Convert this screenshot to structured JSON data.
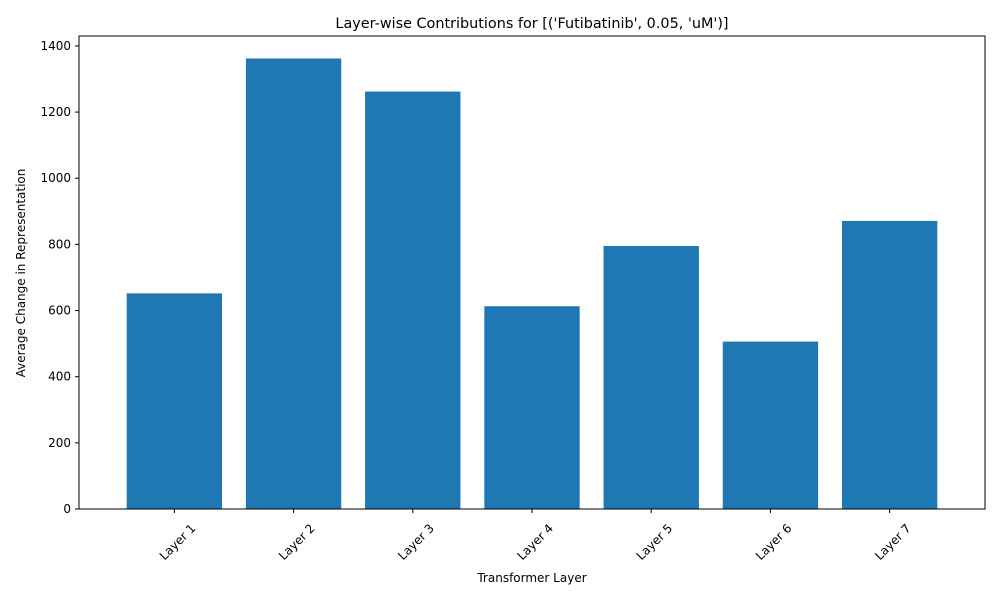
{
  "chart_data": {
    "type": "bar",
    "title": "Layer-wise Contributions for [('Futibatinib', 0.05, 'uM')]",
    "xlabel": "Transformer Layer",
    "ylabel": "Average Change in Representation",
    "categories": [
      "Layer 1",
      "Layer 2",
      "Layer 3",
      "Layer 4",
      "Layer 5",
      "Layer 6",
      "Layer 7"
    ],
    "values": [
      652,
      1362,
      1262,
      613,
      795,
      506,
      871
    ],
    "ylim": [
      0,
      1430
    ],
    "yticks": [
      0,
      200,
      400,
      600,
      800,
      1000,
      1200,
      1400
    ],
    "bar_color": "#1f77b4",
    "grid": false,
    "legend": "none"
  }
}
